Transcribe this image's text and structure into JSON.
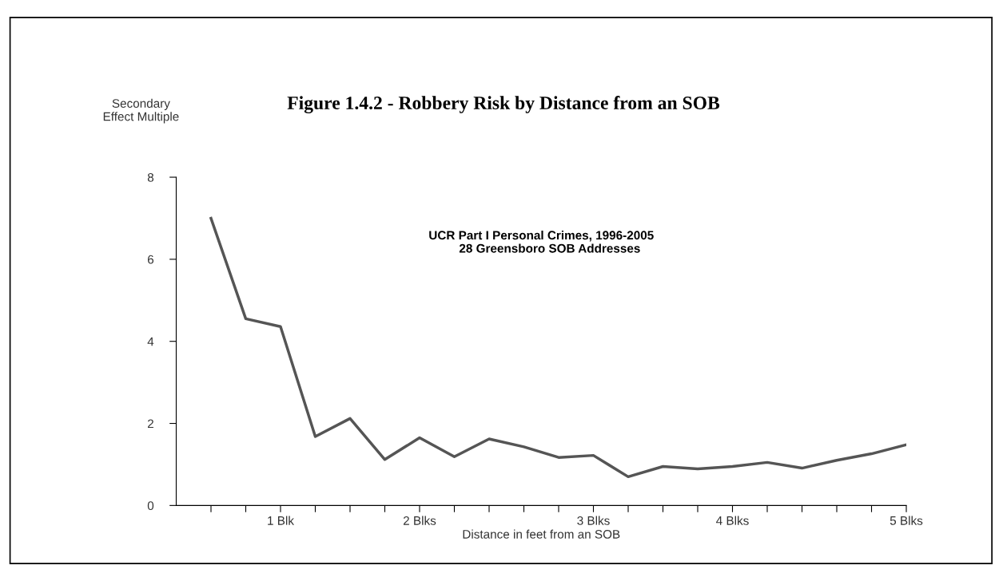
{
  "chart_data": {
    "type": "line",
    "title": "Figure 1.4.2 - Robbery Risk by Distance from an SOB",
    "ylabel": "Secondary\nEffect Multiple",
    "xlabel": "Distance in feet from an SOB",
    "annotations": [
      "UCR Part I Personal Crimes, 1996-2005\n     28 Greensboro SOB Addresses"
    ],
    "categories": [
      null,
      null,
      "1 Blk",
      null,
      null,
      null,
      "2 Blks",
      null,
      null,
      null,
      null,
      "3 Blks",
      null,
      null,
      null,
      "4 Blks",
      null,
      null,
      null,
      null,
      "5 Blks"
    ],
    "series": [
      {
        "color": "#555555",
        "values": [
          7.0,
          4.55,
          4.36,
          1.68,
          2.12,
          1.12,
          1.65,
          1.19,
          1.62,
          1.43,
          1.17,
          1.22,
          0.7,
          0.95,
          0.89,
          0.95,
          1.05,
          0.91,
          1.1,
          1.26,
          1.48
        ]
      }
    ],
    "ylim": [
      0,
      8
    ],
    "yticks": [
      0,
      2,
      4,
      6,
      8
    ],
    "grid": false,
    "legend": false,
    "marker": "none",
    "line_style": "solid"
  }
}
